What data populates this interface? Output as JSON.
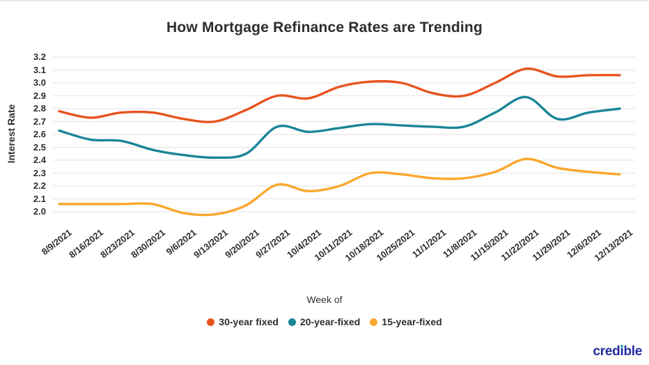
{
  "chart_data": {
    "type": "line",
    "title": "How Mortgage Refinance Rates are Trending",
    "xlabel": "Week of",
    "ylabel": "Interest Rate",
    "ylim": [
      2.0,
      3.2
    ],
    "ytick_step": 0.1,
    "grid": true,
    "legend_position": "bottom",
    "categories": [
      "8/9/2021",
      "8/16/2021",
      "8/23/2021",
      "8/30/2021",
      "9/6/2021",
      "9/13/2021",
      "9/20/2021",
      "9/27/2021",
      "10/4/2021",
      "10/11/2021",
      "10/18/2021",
      "10/25/2021",
      "11/1/2021",
      "11/8/2021",
      "11/15/2021",
      "11/22/2021",
      "11/29/2021",
      "12/6/2021",
      "12/13/2021"
    ],
    "series": [
      {
        "name": "30-year fixed",
        "color": "#E8531F",
        "values": [
          2.78,
          2.73,
          2.77,
          2.77,
          2.72,
          2.7,
          2.79,
          2.9,
          2.88,
          2.97,
          3.01,
          3.0,
          2.92,
          2.9,
          3.0,
          3.11,
          3.05,
          3.06,
          3.06
        ]
      },
      {
        "name": "20-year-fixed",
        "color": "#1A8599",
        "values": [
          2.63,
          2.56,
          2.55,
          2.48,
          2.44,
          2.42,
          2.45,
          2.66,
          2.62,
          2.65,
          2.68,
          2.67,
          2.66,
          2.66,
          2.77,
          2.89,
          2.72,
          2.77,
          2.8
        ]
      },
      {
        "name": "15-year-fixed",
        "color": "#FAA72D",
        "values": [
          2.06,
          2.06,
          2.06,
          2.06,
          1.99,
          1.98,
          2.05,
          2.21,
          2.16,
          2.2,
          2.3,
          2.29,
          2.26,
          2.26,
          2.31,
          2.41,
          2.34,
          2.31,
          2.29
        ]
      }
    ],
    "gridline_color": "#e6e6e6"
  },
  "branding": {
    "logo_text": "credible",
    "logo_color": "#202C9C",
    "logo_accent_color": "#2FB4A3"
  }
}
